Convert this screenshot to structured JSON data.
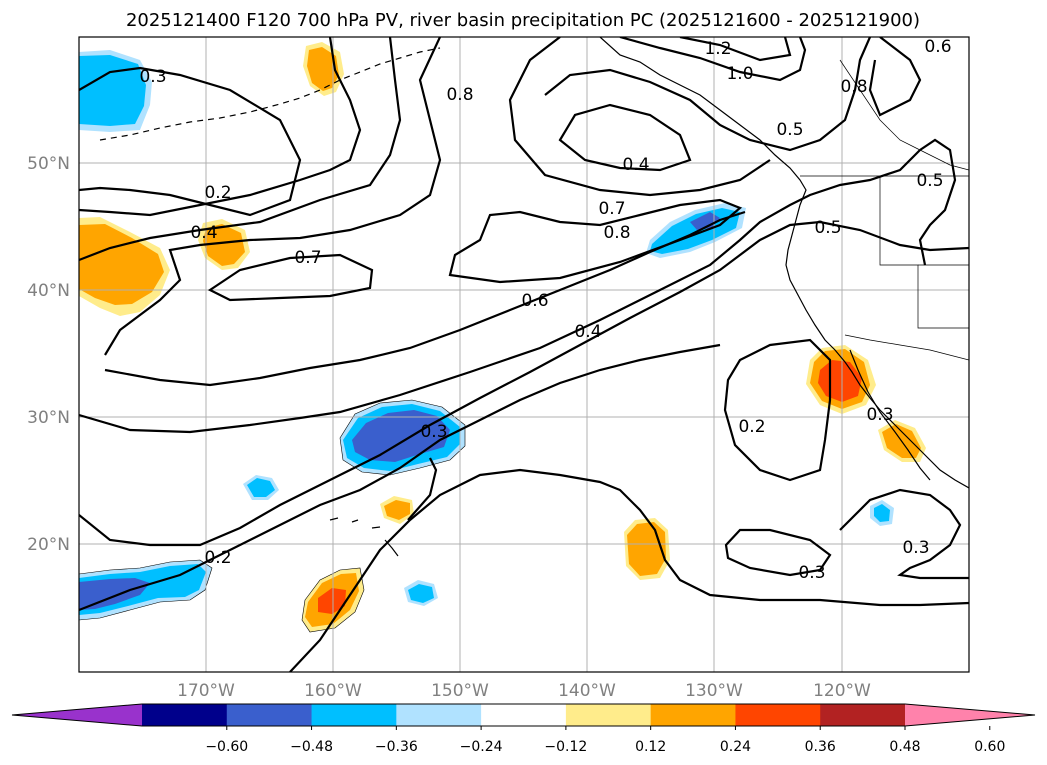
{
  "title": "2025121400 F120 700 hPa PV, river basin precipitation PC (2025121600 - 2025121900)",
  "lat_labels": [
    "50°N",
    "40°N",
    "30°N",
    "20°N"
  ],
  "lon_labels": [
    "170°W",
    "160°W",
    "150°W",
    "140°W",
    "130°W",
    "120°W"
  ],
  "colorbar": {
    "ticks": [
      "−0.60",
      "−0.48",
      "−0.36",
      "−0.24",
      "−0.12",
      "0.12",
      "0.24",
      "0.36",
      "0.48",
      "0.60"
    ],
    "colors": [
      "#9932cc",
      "#00008b",
      "#3a5fcd",
      "#00bfff",
      "#b0e2ff",
      "#ffffff",
      "#ffec8b",
      "#ffa500",
      "#ff4500",
      "#b22222",
      "#ff82ab"
    ],
    "bounds": [
      -0.72,
      -0.6,
      -0.48,
      -0.36,
      -0.24,
      -0.12,
      0.12,
      0.24,
      0.36,
      0.48,
      0.6,
      0.72
    ]
  },
  "contour_labels": [
    "0.3",
    "0.2",
    "0.4",
    "0.7",
    "0.8",
    "0.6",
    "0.4",
    "0.3",
    "0.2",
    "1.2",
    "1.0",
    "0.5",
    "0.4",
    "0.7",
    "0.8",
    "0.5",
    "0.2",
    "0.3",
    "0.3",
    "0.3",
    "0.6",
    "0.8",
    "0.5"
  ],
  "colors": {
    "grid": "#b0b0b0",
    "contour": "#000000"
  }
}
